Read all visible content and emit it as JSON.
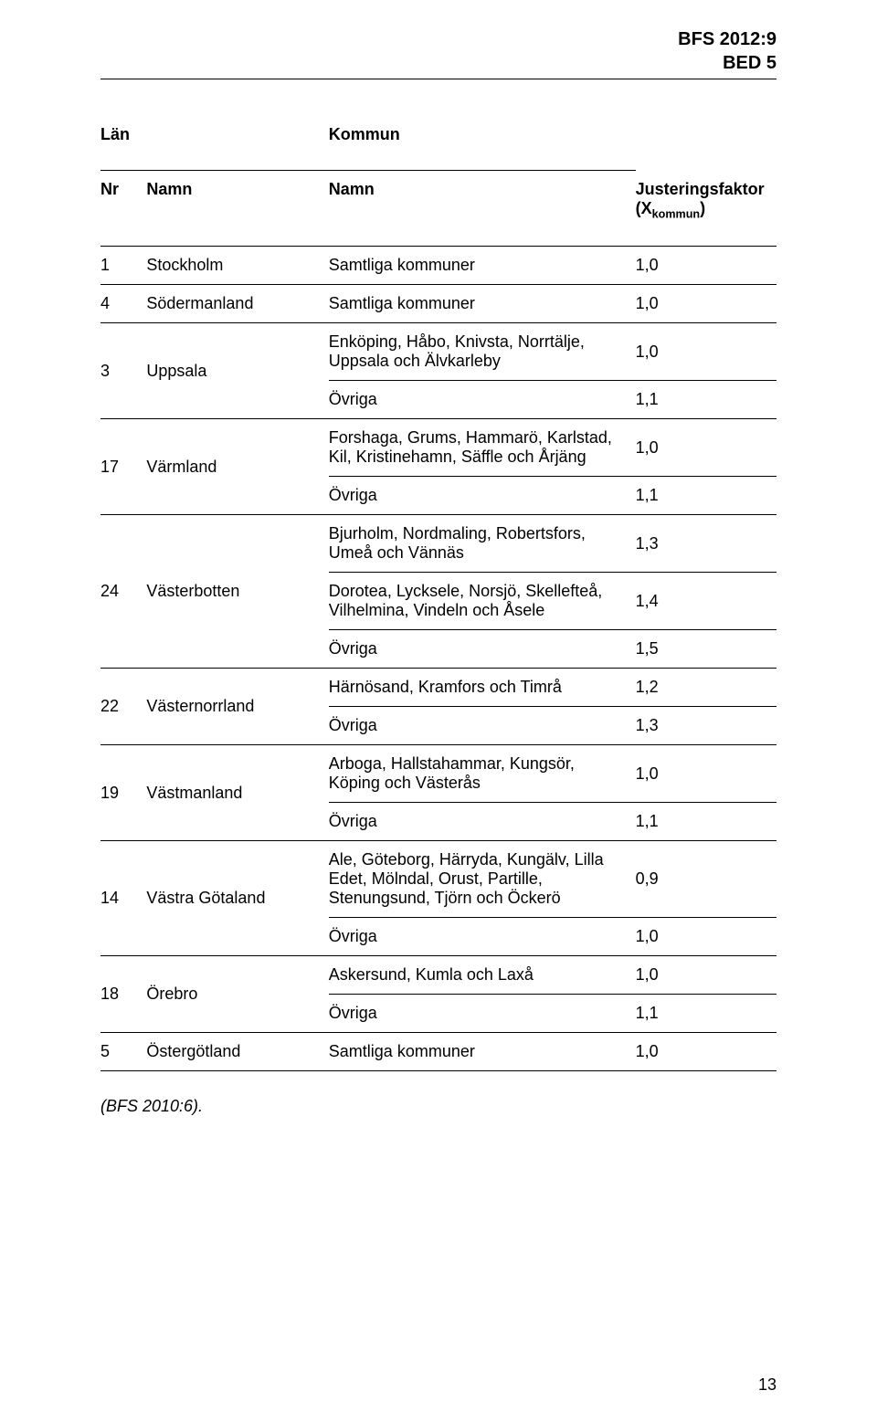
{
  "header": {
    "line1": "BFS 2012:9",
    "line2": "BED 5"
  },
  "tableHeaders": {
    "lanGroup": "Län",
    "kommunGroup": "Kommun",
    "nr": "Nr",
    "namnLan": "Namn",
    "namnKommun": "Namn",
    "faktor": "Justeringsfaktor",
    "faktorSub": "(X",
    "faktorSubInner": "kommun",
    "faktorSubClose": ")"
  },
  "rows": [
    {
      "nr": "1",
      "lan": "Stockholm",
      "cells": [
        {
          "kommun": "Samtliga kommuner",
          "val": "1,0"
        }
      ]
    },
    {
      "nr": "4",
      "lan": "Södermanland",
      "cells": [
        {
          "kommun": "Samtliga kommuner",
          "val": "1,0"
        }
      ]
    },
    {
      "nr": "3",
      "lan": "Uppsala",
      "cells": [
        {
          "kommun": "Enköping, Håbo, Knivsta, Norrtälje, Uppsala och Älvkarleby",
          "val": "1,0"
        },
        {
          "kommun": "Övriga",
          "val": "1,1"
        }
      ]
    },
    {
      "nr": "17",
      "lan": "Värmland",
      "cells": [
        {
          "kommun": "Forshaga, Grums, Hammarö, Karlstad, Kil, Kristinehamn, Säffle och Årjäng",
          "val": "1,0"
        },
        {
          "kommun": "Övriga",
          "val": "1,1"
        }
      ]
    },
    {
      "nr": "24",
      "lan": "Västerbotten",
      "cells": [
        {
          "kommun": "Bjurholm, Nordmaling, Robertsfors, Umeå och Vännäs",
          "val": "1,3"
        },
        {
          "kommun": "Dorotea, Lycksele, Norsjö, Skellefteå, Vilhelmina, Vindeln och Åsele",
          "val": "1,4"
        },
        {
          "kommun": "Övriga",
          "val": "1,5"
        }
      ]
    },
    {
      "nr": "22",
      "lan": "Västernorrland",
      "cells": [
        {
          "kommun": "Härnösand, Kramfors och Timrå",
          "val": "1,2"
        },
        {
          "kommun": "Övriga",
          "val": "1,3"
        }
      ]
    },
    {
      "nr": "19",
      "lan": "Västmanland",
      "cells": [
        {
          "kommun": "Arboga, Hallstahammar, Kungsör, Köping och Västerås",
          "val": "1,0"
        },
        {
          "kommun": "Övriga",
          "val": "1,1"
        }
      ]
    },
    {
      "nr": "14",
      "lan": "Västra Götaland",
      "cells": [
        {
          "kommun": "Ale, Göteborg, Härryda, Kungälv, Lilla Edet, Mölndal, Orust, Partille, Stenungsund, Tjörn och Öckerö",
          "val": "0,9"
        },
        {
          "kommun": "Övriga",
          "val": "1,0"
        }
      ]
    },
    {
      "nr": "18",
      "lan": "Örebro",
      "cells": [
        {
          "kommun": "Askersund, Kumla och Laxå",
          "val": "1,0"
        },
        {
          "kommun": "Övriga",
          "val": "1,1"
        }
      ]
    },
    {
      "nr": "5",
      "lan": "Östergötland",
      "cells": [
        {
          "kommun": "Samtliga kommuner",
          "val": "1,0"
        }
      ]
    }
  ],
  "citation": "(BFS 2010:6).",
  "pageNumber": "13",
  "style": {
    "pageWidth": 960,
    "pageHeight": 1557,
    "fontFamily": "Arial",
    "baseFontSize": 18,
    "headerFontSize": 20,
    "textColor": "#000000",
    "backgroundColor": "#ffffff",
    "ruleThick": 1.5,
    "ruleThin": 1
  }
}
